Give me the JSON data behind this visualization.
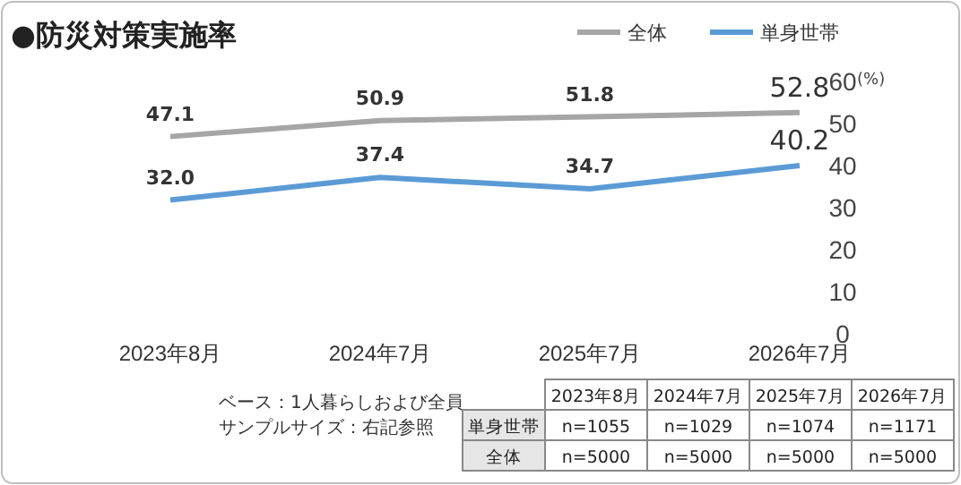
{
  "chart_data": {
    "type": "line",
    "title": "●防災対策実施率",
    "ylabel": "(%)",
    "categories": [
      "2023年8月",
      "2024年7月",
      "2025年7月",
      "2026年7月"
    ],
    "series": [
      {
        "name": "全体",
        "color": "#a6a6a6",
        "values": [
          47.1,
          50.9,
          51.8,
          52.8
        ],
        "value_labels": [
          "47.1",
          "50.9",
          "51.8",
          "52.8"
        ]
      },
      {
        "name": "単身世帯",
        "color": "#5b9bd5",
        "values": [
          32.0,
          37.4,
          34.7,
          40.2
        ],
        "value_labels": [
          "32.0",
          "37.4",
          "34.7",
          "40.2"
        ]
      }
    ],
    "ylim": [
      0,
      60
    ],
    "yticks": [
      0,
      10,
      20,
      30,
      40,
      50,
      60
    ],
    "grid": false,
    "legend": "top right",
    "marker": "none",
    "line_style": "solid",
    "annotations": [
      "ベース：1人暮らしおよび全員",
      "サンプルサイズ：右記参照",
      "単身世帯",
      "n=1055",
      "n=1029",
      "n=1074",
      "n=1171",
      "全体",
      "n=5000",
      "n=5000",
      "n=5000",
      "n=5000"
    ]
  }
}
